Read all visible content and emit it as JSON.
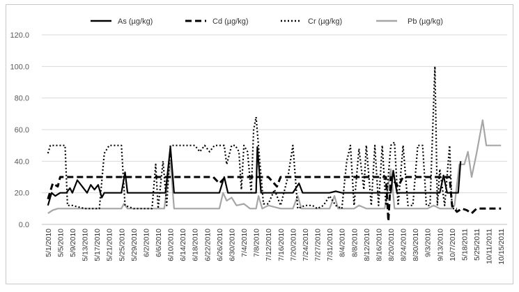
{
  "chart_data": {
    "type": "line",
    "title": "",
    "xlabel": "",
    "ylabel": "",
    "ylim": [
      0,
      120
    ],
    "yticks": [
      "0.0",
      "20.0",
      "40.0",
      "60.0",
      "80.0",
      "100.0",
      "120.0"
    ],
    "grid": true,
    "legend_position": "top",
    "categories": [
      "5/1/2010",
      "5/5/2010",
      "5/9/2010",
      "5/13/2010",
      "5/17/2010",
      "5/21/2010",
      "5/25/2010",
      "5/29/2010",
      "6/2/2010",
      "6/6/2010",
      "6/10/2010",
      "6/14/2010",
      "6/18/2010",
      "6/22/2010",
      "6/26/2010",
      "6/30/2010",
      "7/4/2010",
      "7/8/2010",
      "7/12/2010",
      "7/16/2010",
      "7/20/2010",
      "7/24/2010",
      "7/27/2010",
      "7/31/2010",
      "8/4/2010",
      "8/8/2010",
      "8/12/2010",
      "8/16/2010",
      "8/20/2010",
      "8/24/2010",
      "8/30/2010",
      "9/3/2010",
      "9/13/2010",
      "10/7/2010",
      "5/18/2011",
      "5/25/2011",
      "10/11/2011",
      "10/15/2011"
    ],
    "series": [
      {
        "name": "As (µg/kg)",
        "style": "solid",
        "color": "#000000",
        "points": [
          [
            0,
            12
          ],
          [
            0.3,
            20
          ],
          [
            0.6,
            18
          ],
          [
            1,
            20
          ],
          [
            1.5,
            20
          ],
          [
            1.8,
            23
          ],
          [
            2,
            20
          ],
          [
            2.4,
            28
          ],
          [
            2.8,
            24
          ],
          [
            3.2,
            20
          ],
          [
            3.5,
            25
          ],
          [
            3.8,
            22
          ],
          [
            4.1,
            25
          ],
          [
            4.4,
            17
          ],
          [
            4.6,
            20
          ],
          [
            5,
            20
          ],
          [
            6,
            20
          ],
          [
            6.3,
            33
          ],
          [
            6.5,
            20
          ],
          [
            7,
            20
          ],
          [
            8,
            20
          ],
          [
            9,
            20
          ],
          [
            9.6,
            20
          ],
          [
            10,
            49
          ],
          [
            10.3,
            20
          ],
          [
            11,
            20
          ],
          [
            12,
            20
          ],
          [
            13,
            20
          ],
          [
            14,
            20
          ],
          [
            14.4,
            30
          ],
          [
            14.7,
            20
          ],
          [
            15,
            20
          ],
          [
            16,
            20
          ],
          [
            17,
            20
          ],
          [
            17.1,
            49
          ],
          [
            17.4,
            20
          ],
          [
            18,
            20
          ],
          [
            19,
            20
          ],
          [
            20,
            20
          ],
          [
            20.5,
            26
          ],
          [
            20.8,
            20
          ],
          [
            21,
            20
          ],
          [
            22,
            20
          ],
          [
            23,
            20
          ],
          [
            23.5,
            21
          ],
          [
            24,
            20
          ],
          [
            25,
            20
          ],
          [
            26,
            20
          ],
          [
            27,
            20
          ],
          [
            28,
            20
          ],
          [
            28.2,
            34
          ],
          [
            28.5,
            20
          ],
          [
            29,
            20
          ],
          [
            30,
            20
          ],
          [
            31,
            20
          ],
          [
            32,
            20
          ],
          [
            32.3,
            31
          ],
          [
            32.6,
            20
          ],
          [
            33,
            20
          ],
          [
            33.5,
            20
          ],
          [
            33.7,
            40
          ]
        ]
      },
      {
        "name": "Cd (µg/kg)",
        "style": "dashed",
        "color": "#000000",
        "points": [
          [
            0,
            16
          ],
          [
            0.4,
            26
          ],
          [
            0.8,
            24
          ],
          [
            1,
            30
          ],
          [
            5,
            30
          ],
          [
            8,
            30
          ],
          [
            10,
            30
          ],
          [
            12,
            30
          ],
          [
            13.5,
            30
          ],
          [
            14,
            26
          ],
          [
            14.5,
            30
          ],
          [
            17,
            30
          ],
          [
            18,
            30
          ],
          [
            18.7,
            24
          ],
          [
            19,
            30
          ],
          [
            24,
            30
          ],
          [
            27,
            30
          ],
          [
            27.6,
            30
          ],
          [
            27.8,
            2
          ],
          [
            28,
            30
          ],
          [
            28.6,
            24
          ],
          [
            29,
            30
          ],
          [
            32,
            30
          ],
          [
            32.8,
            30
          ],
          [
            33,
            12
          ],
          [
            33.4,
            8
          ],
          [
            33.8,
            10
          ],
          [
            34.2,
            9
          ],
          [
            34.6,
            7
          ],
          [
            35,
            10
          ],
          [
            36,
            10
          ],
          [
            37,
            10
          ]
        ]
      },
      {
        "name": "Cr (µg/kg)",
        "style": "dotted",
        "color": "#000000",
        "points": [
          [
            0,
            45
          ],
          [
            0.2,
            50
          ],
          [
            1,
            50
          ],
          [
            1.4,
            50
          ],
          [
            1.6,
            12
          ],
          [
            2,
            12
          ],
          [
            3,
            10
          ],
          [
            4,
            10
          ],
          [
            4.2,
            10
          ],
          [
            4.6,
            45
          ],
          [
            5,
            50
          ],
          [
            5.6,
            50
          ],
          [
            6,
            50
          ],
          [
            6.3,
            12
          ],
          [
            7,
            10
          ],
          [
            8,
            10
          ],
          [
            8.5,
            10
          ],
          [
            8.8,
            38
          ],
          [
            9,
            10
          ],
          [
            9.4,
            40
          ],
          [
            9.7,
            12
          ],
          [
            10,
            50
          ],
          [
            10.5,
            50
          ],
          [
            11,
            50
          ],
          [
            12,
            50
          ],
          [
            12.4,
            46
          ],
          [
            12.8,
            50
          ],
          [
            13.2,
            46
          ],
          [
            13.6,
            50
          ],
          [
            14,
            50
          ],
          [
            14.4,
            50
          ],
          [
            14.6,
            38
          ],
          [
            15,
            50
          ],
          [
            15.3,
            50
          ],
          [
            15.6,
            46
          ],
          [
            15.8,
            22
          ],
          [
            16,
            50
          ],
          [
            16.3,
            46
          ],
          [
            16.6,
            20
          ],
          [
            16.8,
            60
          ],
          [
            17,
            68
          ],
          [
            17.3,
            40
          ],
          [
            17.6,
            13
          ],
          [
            18,
            13
          ],
          [
            18.5,
            22
          ],
          [
            19,
            12
          ],
          [
            19.6,
            30
          ],
          [
            20,
            50
          ],
          [
            20.4,
            10
          ],
          [
            21,
            12
          ],
          [
            21.6,
            12
          ],
          [
            22,
            10
          ],
          [
            22.5,
            12
          ],
          [
            23,
            18
          ],
          [
            23.5,
            12
          ],
          [
            24,
            10
          ],
          [
            24.4,
            40
          ],
          [
            24.7,
            50
          ],
          [
            25,
            12
          ],
          [
            25.4,
            48
          ],
          [
            25.8,
            22
          ],
          [
            26,
            50
          ],
          [
            26.4,
            12
          ],
          [
            26.7,
            50
          ],
          [
            27,
            12
          ],
          [
            27.3,
            50
          ],
          [
            27.6,
            12
          ],
          [
            28,
            50
          ],
          [
            28.3,
            52
          ],
          [
            28.6,
            12
          ],
          [
            29,
            50
          ],
          [
            29.4,
            12
          ],
          [
            29.8,
            12
          ],
          [
            30.2,
            50
          ],
          [
            30.6,
            50
          ],
          [
            30.9,
            12
          ],
          [
            31.2,
            12
          ],
          [
            31.6,
            100
          ],
          [
            31.8,
            12
          ],
          [
            32,
            35
          ],
          [
            32.4,
            12
          ],
          [
            32.8,
            50
          ],
          [
            33,
            10
          ],
          [
            33.4,
            10
          ]
        ]
      },
      {
        "name": "Pb (µg/kg)",
        "style": "solid",
        "color": "#a6a6a6",
        "points": [
          [
            0,
            7
          ],
          [
            0.4,
            9
          ],
          [
            0.8,
            10
          ],
          [
            1,
            10
          ],
          [
            4,
            10
          ],
          [
            5,
            10
          ],
          [
            6,
            10
          ],
          [
            6.2,
            13
          ],
          [
            6.5,
            10
          ],
          [
            9,
            10
          ],
          [
            9.5,
            10
          ],
          [
            10,
            40
          ],
          [
            10.3,
            10
          ],
          [
            11,
            10
          ],
          [
            12,
            10
          ],
          [
            14,
            10
          ],
          [
            14.3,
            20
          ],
          [
            14.6,
            15
          ],
          [
            15,
            17
          ],
          [
            15.4,
            12
          ],
          [
            16,
            13
          ],
          [
            16.5,
            10
          ],
          [
            17,
            10
          ],
          [
            17.2,
            18
          ],
          [
            17.5,
            10
          ],
          [
            18,
            12
          ],
          [
            19,
            10
          ],
          [
            20,
            10
          ],
          [
            20.4,
            18
          ],
          [
            20.7,
            10
          ],
          [
            22,
            10
          ],
          [
            23,
            10
          ],
          [
            23.4,
            18
          ],
          [
            23.7,
            10
          ],
          [
            24,
            10
          ],
          [
            25,
            10
          ],
          [
            25.4,
            12
          ],
          [
            26,
            10
          ],
          [
            27,
            10
          ],
          [
            27.5,
            10
          ],
          [
            28,
            35
          ],
          [
            28.3,
            10
          ],
          [
            29,
            10
          ],
          [
            30,
            10
          ],
          [
            31,
            10
          ],
          [
            31.5,
            12
          ],
          [
            32,
            10
          ],
          [
            33,
            10
          ],
          [
            33.2,
            12
          ],
          [
            33.6,
            38
          ],
          [
            34,
            38
          ],
          [
            34.3,
            46
          ],
          [
            34.6,
            30
          ],
          [
            35,
            45
          ],
          [
            35.5,
            66
          ],
          [
            35.8,
            50
          ],
          [
            36,
            50
          ],
          [
            37,
            50
          ]
        ]
      }
    ]
  }
}
